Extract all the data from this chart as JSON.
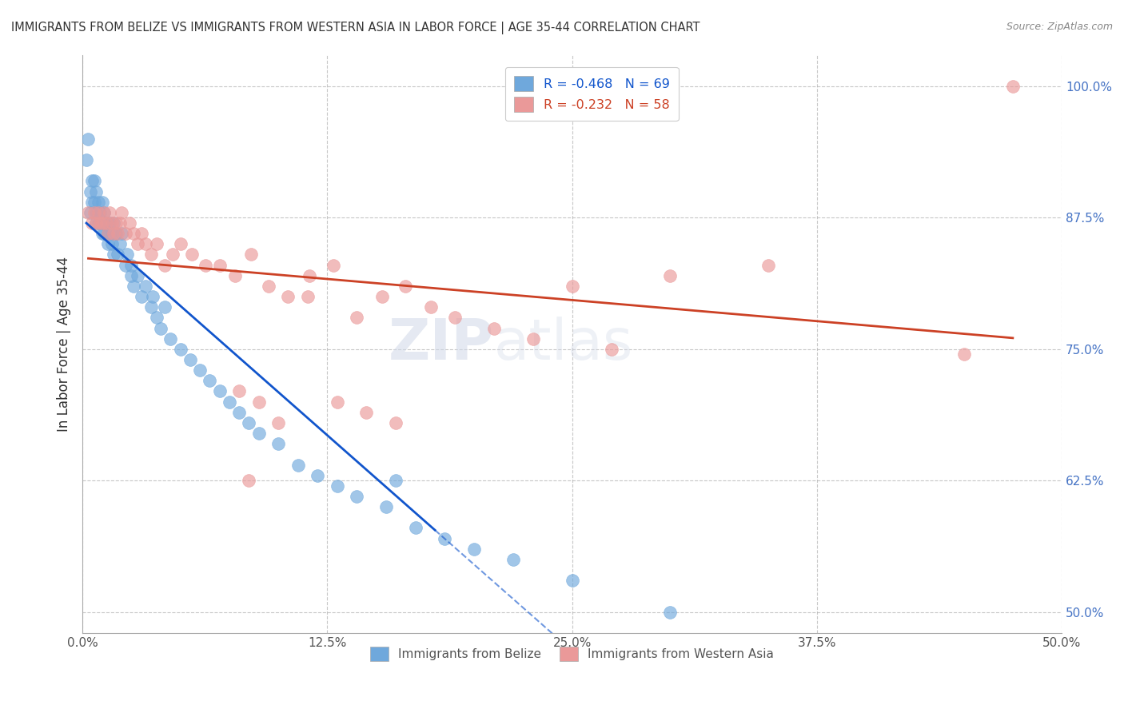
{
  "title": "IMMIGRANTS FROM BELIZE VS IMMIGRANTS FROM WESTERN ASIA IN LABOR FORCE | AGE 35-44 CORRELATION CHART",
  "source": "Source: ZipAtlas.com",
  "xlim": [
    0.0,
    0.5
  ],
  "ylim": [
    0.48,
    1.03
  ],
  "ylabel": "In Labor Force | Age 35-44",
  "belize_R": -0.468,
  "belize_N": 69,
  "western_R": -0.232,
  "western_N": 58,
  "belize_color": "#6fa8dc",
  "western_color": "#ea9999",
  "belize_line_color": "#1155cc",
  "western_line_color": "#cc4125",
  "watermark_zip": "ZIP",
  "watermark_atlas": "atlas",
  "belize_x": [
    0.002,
    0.003,
    0.004,
    0.004,
    0.005,
    0.005,
    0.006,
    0.006,
    0.007,
    0.007,
    0.007,
    0.008,
    0.008,
    0.008,
    0.009,
    0.009,
    0.01,
    0.01,
    0.01,
    0.011,
    0.011,
    0.012,
    0.013,
    0.013,
    0.014,
    0.015,
    0.015,
    0.016,
    0.016,
    0.017,
    0.018,
    0.019,
    0.02,
    0.022,
    0.023,
    0.025,
    0.025,
    0.026,
    0.028,
    0.03,
    0.032,
    0.035,
    0.036,
    0.038,
    0.04,
    0.042,
    0.045,
    0.05,
    0.055,
    0.06,
    0.065,
    0.07,
    0.075,
    0.08,
    0.085,
    0.09,
    0.1,
    0.11,
    0.12,
    0.13,
    0.14,
    0.155,
    0.17,
    0.185,
    0.2,
    0.22,
    0.25,
    0.16,
    0.3
  ],
  "belize_y": [
    0.93,
    0.95,
    0.88,
    0.9,
    0.91,
    0.89,
    0.91,
    0.89,
    0.9,
    0.88,
    0.87,
    0.89,
    0.88,
    0.87,
    0.88,
    0.87,
    0.89,
    0.87,
    0.86,
    0.88,
    0.86,
    0.87,
    0.86,
    0.85,
    0.87,
    0.86,
    0.85,
    0.87,
    0.84,
    0.86,
    0.84,
    0.85,
    0.86,
    0.83,
    0.84,
    0.83,
    0.82,
    0.81,
    0.82,
    0.8,
    0.81,
    0.79,
    0.8,
    0.78,
    0.77,
    0.79,
    0.76,
    0.75,
    0.74,
    0.73,
    0.72,
    0.71,
    0.7,
    0.69,
    0.68,
    0.67,
    0.66,
    0.64,
    0.63,
    0.62,
    0.61,
    0.6,
    0.58,
    0.57,
    0.56,
    0.55,
    0.53,
    0.625,
    0.5
  ],
  "western_x": [
    0.003,
    0.005,
    0.006,
    0.007,
    0.008,
    0.009,
    0.01,
    0.011,
    0.012,
    0.013,
    0.014,
    0.015,
    0.016,
    0.017,
    0.018,
    0.019,
    0.02,
    0.022,
    0.024,
    0.026,
    0.028,
    0.03,
    0.032,
    0.035,
    0.038,
    0.042,
    0.046,
    0.05,
    0.056,
    0.063,
    0.07,
    0.078,
    0.086,
    0.095,
    0.105,
    0.116,
    0.128,
    0.14,
    0.153,
    0.165,
    0.178,
    0.19,
    0.21,
    0.23,
    0.25,
    0.27,
    0.3,
    0.35,
    0.085,
    0.475,
    0.08,
    0.09,
    0.1,
    0.115,
    0.13,
    0.145,
    0.16,
    0.45
  ],
  "western_y": [
    0.88,
    0.87,
    0.88,
    0.87,
    0.88,
    0.87,
    0.87,
    0.88,
    0.87,
    0.86,
    0.88,
    0.87,
    0.86,
    0.87,
    0.86,
    0.87,
    0.88,
    0.86,
    0.87,
    0.86,
    0.85,
    0.86,
    0.85,
    0.84,
    0.85,
    0.83,
    0.84,
    0.85,
    0.84,
    0.83,
    0.83,
    0.82,
    0.84,
    0.81,
    0.8,
    0.82,
    0.83,
    0.78,
    0.8,
    0.81,
    0.79,
    0.78,
    0.77,
    0.76,
    0.81,
    0.75,
    0.82,
    0.83,
    0.625,
    1.0,
    0.71,
    0.7,
    0.68,
    0.8,
    0.7,
    0.69,
    0.68,
    0.745
  ]
}
